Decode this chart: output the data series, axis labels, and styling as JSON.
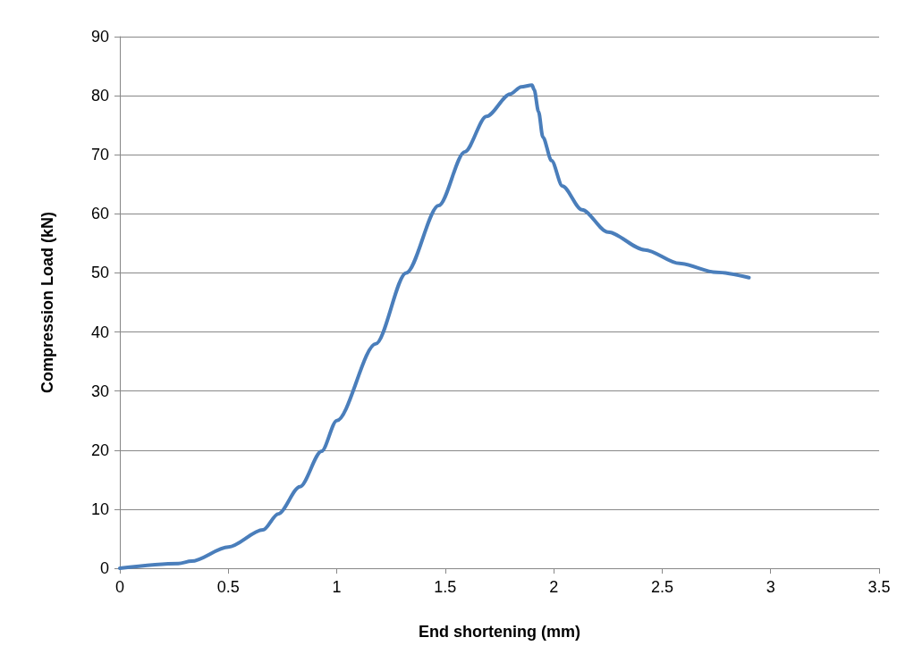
{
  "chart_data": {
    "type": "line",
    "xlabel": "End shortening (mm)",
    "ylabel": "Compression Load (kN)",
    "xlim": [
      0,
      3.5
    ],
    "xticks": [
      0,
      0.5,
      1,
      1.5,
      2,
      2.5,
      3,
      3.5
    ],
    "ylim": [
      0,
      90
    ],
    "yticks": [
      0,
      10,
      20,
      30,
      40,
      50,
      60,
      70,
      80,
      90
    ],
    "grid": "y",
    "marker": "none",
    "line_style": "solid",
    "series": [
      {
        "color": "#4a7ebb",
        "x": [
          0,
          0.27,
          0.33,
          0.5,
          0.66,
          0.73,
          0.83,
          0.93,
          1.0,
          1.18,
          1.32,
          1.47,
          1.59,
          1.69,
          1.8,
          1.85,
          1.9,
          1.91,
          1.93,
          1.95,
          1.99,
          2.04,
          2.13,
          2.25,
          2.42,
          2.58,
          2.75,
          2.9
        ],
        "values": [
          0,
          0.8,
          1.2,
          3.6,
          6.5,
          9.2,
          13.8,
          19.8,
          25,
          38,
          50,
          61.4,
          70.5,
          76.5,
          80.3,
          81.5,
          81.8,
          81,
          77.3,
          73,
          69,
          64.7,
          60.7,
          56.9,
          53.9,
          51.6,
          50.1,
          49.2
        ]
      }
    ]
  }
}
